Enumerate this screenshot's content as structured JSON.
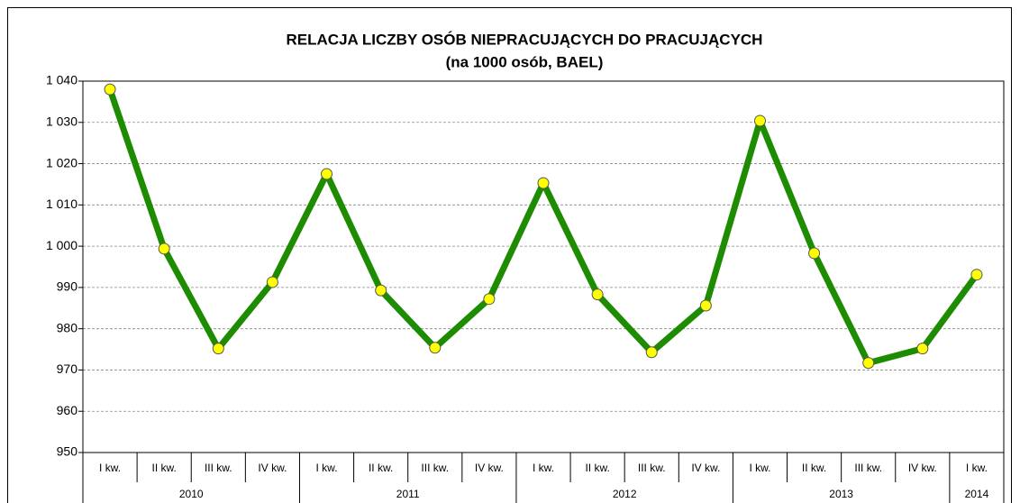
{
  "chart_data": {
    "type": "line",
    "title": "RELACJA LICZBY OSÓB NIEPRACUJĄCYCH DO PRACUJĄCYCH",
    "subtitle": "(na 1000 osób, BAEL)",
    "year_groups": [
      {
        "label": "2010",
        "categories": [
          "I kw.",
          "II kw.",
          "III kw.",
          "IV kw."
        ]
      },
      {
        "label": "2011",
        "categories": [
          "I kw.",
          "II kw.",
          "III kw.",
          "IV kw."
        ]
      },
      {
        "label": "2012",
        "categories": [
          "I kw.",
          "II kw.",
          "III kw.",
          "IV kw."
        ]
      },
      {
        "label": "2013",
        "categories": [
          "I kw.",
          "II kw.",
          "III kw.",
          "IV kw."
        ]
      },
      {
        "label": "2014",
        "categories": [
          "I kw."
        ]
      }
    ],
    "values": [
      1038.0,
      999.4,
      975.2,
      991.3,
      1017.5,
      989.3,
      975.4,
      987.2,
      1015.3,
      988.3,
      974.3,
      985.6,
      1030.4,
      998.3,
      971.7,
      975.2,
      993.1
    ],
    "color": "#1e8c00",
    "marker_color": "#ffff00",
    "ylim": [
      950,
      1040
    ],
    "yticks": [
      950,
      960,
      970,
      980,
      990,
      {
        "value": 1000,
        "label": "1 000"
      },
      {
        "value": 1010,
        "label": "1 010"
      },
      {
        "value": 1020,
        "label": "1 020"
      },
      {
        "value": 1030,
        "label": "1 030"
      },
      {
        "value": 1040,
        "label": "1 040"
      }
    ],
    "grid": true
  }
}
